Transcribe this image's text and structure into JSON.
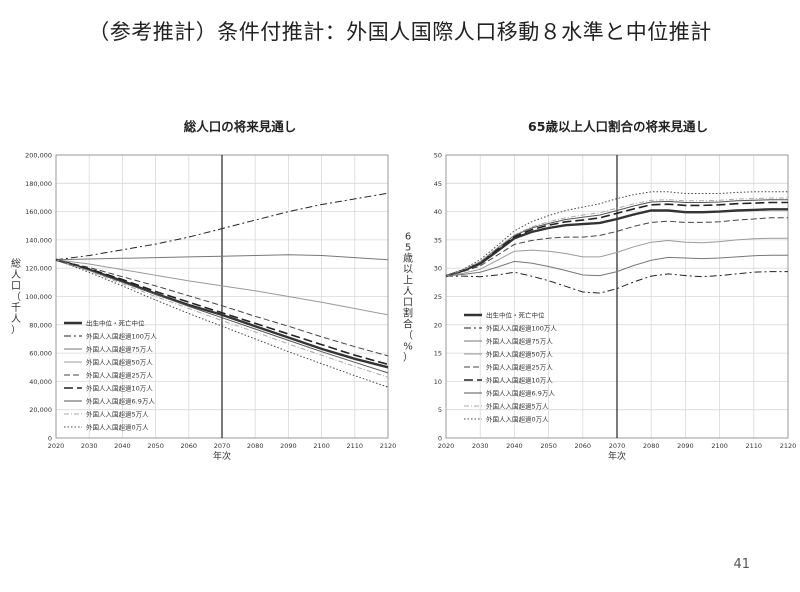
{
  "slide": {
    "title": "（参考推計）条件付推計：外国人国際人口移動８水準と中位推計",
    "page_number": "41"
  },
  "chart_data": [
    {
      "type": "line",
      "title": "総人口の将来見通し",
      "xlabel": "年次",
      "ylabel": "総人口（千人）",
      "xlim": [
        2020,
        2120
      ],
      "ylim": [
        0,
        200000
      ],
      "xticks": [
        2020,
        2030,
        2040,
        2050,
        2060,
        2070,
        2080,
        2090,
        2100,
        2110,
        2120
      ],
      "yticks": [
        0,
        20000,
        40000,
        60000,
        80000,
        100000,
        120000,
        140000,
        160000,
        180000,
        200000
      ],
      "ytick_labels": [
        "0",
        "20,000",
        "40,000",
        "60,000",
        "80,000",
        "100,000",
        "120,000",
        "140,000",
        "160,000",
        "180,000",
        "200,000"
      ],
      "reference_line_x": 2070,
      "grid": true,
      "legend_position": "lower-left",
      "x": [
        2020,
        2030,
        2040,
        2050,
        2060,
        2070,
        2080,
        2090,
        2100,
        2110,
        2120
      ],
      "series": [
        {
          "name": "出生中位・死亡中位",
          "style": "bold",
          "values": [
            126000,
            119000,
            111000,
            102000,
            94000,
            87000,
            79000,
            71000,
            63000,
            56000,
            50000
          ]
        },
        {
          "name": "外国人入国超過100万人",
          "style": "dashdot",
          "values": [
            126000,
            129000,
            133000,
            137000,
            142000,
            148000,
            154000,
            160000,
            165000,
            169000,
            173000
          ]
        },
        {
          "name": "外国人入国超過75万人",
          "style": "thin",
          "values": [
            126000,
            126500,
            127000,
            127500,
            128000,
            128500,
            129000,
            129500,
            129000,
            127500,
            126000
          ]
        },
        {
          "name": "外国人入国超過50万人",
          "style": "thin-light",
          "values": [
            126000,
            123000,
            119000,
            115000,
            111000,
            107500,
            104000,
            100000,
            96000,
            91500,
            87000
          ]
        },
        {
          "name": "外国人入国超過25万人",
          "style": "dashed",
          "values": [
            126000,
            120500,
            114000,
            107500,
            100500,
            93500,
            86000,
            79000,
            71500,
            64500,
            58000
          ]
        },
        {
          "name": "外国人入国超過10万人",
          "style": "long-dash",
          "values": [
            126000,
            119500,
            112000,
            103500,
            96000,
            88500,
            81000,
            73500,
            66000,
            58500,
            52000
          ]
        },
        {
          "name": "外国人入国超過6.9万人",
          "style": "thin-dark",
          "values": [
            126000,
            118500,
            110000,
            101500,
            93000,
            85000,
            77000,
            69000,
            61000,
            53500,
            46000
          ]
        },
        {
          "name": "外国人入国超過5万人",
          "style": "dash-dot-light",
          "values": [
            126000,
            118000,
            109000,
            100000,
            91500,
            83000,
            75000,
            66500,
            58500,
            50500,
            43000
          ]
        },
        {
          "name": "外国人入国超過0万人",
          "style": "dotted",
          "values": [
            126000,
            117000,
            107500,
            97500,
            88000,
            79000,
            70000,
            61000,
            52500,
            44000,
            36000
          ]
        }
      ]
    },
    {
      "type": "line",
      "title": "65歳以上人口割合の将来見通し",
      "xlabel": "年次",
      "ylabel": "65歳以上人口割合（%）",
      "xlim": [
        2020,
        2120
      ],
      "ylim": [
        0,
        50
      ],
      "xticks": [
        2020,
        2030,
        2040,
        2050,
        2060,
        2070,
        2080,
        2090,
        2100,
        2110,
        2120
      ],
      "yticks": [
        0,
        5,
        10,
        15,
        20,
        25,
        30,
        35,
        40,
        45,
        50
      ],
      "ytick_labels": [
        "0",
        "5",
        "10",
        "15",
        "20",
        "25",
        "30",
        "35",
        "40",
        "45",
        "50"
      ],
      "reference_line_x": 2070,
      "grid": true,
      "legend_position": "lower-left",
      "x": [
        2020,
        2025,
        2030,
        2035,
        2040,
        2045,
        2050,
        2055,
        2060,
        2065,
        2070,
        2075,
        2080,
        2085,
        2090,
        2095,
        2100,
        2105,
        2110,
        2115,
        2120
      ],
      "series": [
        {
          "name": "出生中位・死亡中位",
          "style": "bold",
          "values": [
            28.6,
            29.6,
            30.8,
            33.0,
            35.3,
            36.4,
            37.1,
            37.6,
            37.8,
            38.0,
            38.7,
            39.5,
            40.2,
            40.2,
            39.9,
            39.9,
            40.0,
            40.2,
            40.3,
            40.4,
            40.4
          ]
        },
        {
          "name": "外国人入国超過100万人",
          "style": "dashdot",
          "values": [
            28.6,
            28.6,
            28.5,
            28.8,
            29.3,
            28.6,
            27.8,
            26.8,
            25.8,
            25.6,
            26.4,
            27.6,
            28.6,
            29.0,
            28.7,
            28.5,
            28.7,
            29.0,
            29.3,
            29.4,
            29.4
          ]
        },
        {
          "name": "外国人入国超過75万人",
          "style": "thin",
          "values": [
            28.6,
            28.9,
            29.3,
            30.2,
            31.2,
            30.9,
            30.3,
            29.6,
            28.8,
            28.7,
            29.4,
            30.5,
            31.4,
            31.9,
            31.8,
            31.7,
            31.8,
            32.0,
            32.2,
            32.3,
            32.3
          ]
        },
        {
          "name": "外国人入国超過50万人",
          "style": "thin-light",
          "values": [
            28.6,
            29.1,
            29.8,
            31.4,
            33.0,
            33.2,
            33.0,
            32.6,
            32.0,
            32.0,
            32.8,
            33.8,
            34.6,
            34.9,
            34.6,
            34.5,
            34.7,
            35.0,
            35.2,
            35.3,
            35.3
          ]
        },
        {
          "name": "外国人入国超過25万人",
          "style": "dashed",
          "values": [
            28.6,
            29.4,
            30.4,
            32.3,
            34.2,
            34.9,
            35.3,
            35.5,
            35.5,
            35.8,
            36.5,
            37.4,
            38.1,
            38.3,
            38.1,
            38.1,
            38.2,
            38.5,
            38.7,
            38.9,
            38.9
          ]
        },
        {
          "name": "外国人入国超過10万人",
          "style": "long-dash",
          "values": [
            28.6,
            29.6,
            31.0,
            33.3,
            35.6,
            36.8,
            37.6,
            38.2,
            38.5,
            38.9,
            39.7,
            40.5,
            41.2,
            41.3,
            41.1,
            41.1,
            41.2,
            41.4,
            41.5,
            41.6,
            41.6
          ]
        },
        {
          "name": "外国人入国超過6.9万人",
          "style": "thin-dark",
          "values": [
            28.6,
            29.7,
            31.1,
            33.5,
            35.8,
            37.1,
            37.9,
            38.6,
            39.0,
            39.4,
            40.2,
            41.0,
            41.7,
            41.8,
            41.6,
            41.6,
            41.7,
            41.9,
            42.0,
            42.1,
            42.1
          ]
        },
        {
          "name": "外国人入国超過5万人",
          "style": "dash-dot-light",
          "values": [
            28.6,
            29.7,
            31.2,
            33.6,
            35.9,
            37.3,
            38.2,
            38.9,
            39.4,
            39.8,
            40.6,
            41.4,
            42.0,
            42.1,
            41.9,
            41.9,
            42.0,
            42.2,
            42.3,
            42.4,
            42.4
          ]
        },
        {
          "name": "外国人入国超過0万人",
          "style": "dotted",
          "values": [
            28.6,
            29.8,
            31.5,
            34.0,
            36.6,
            38.2,
            39.3,
            40.2,
            40.8,
            41.4,
            42.3,
            43.0,
            43.5,
            43.5,
            43.2,
            43.2,
            43.2,
            43.4,
            43.5,
            43.5,
            43.5
          ]
        }
      ]
    }
  ],
  "line_styles": {
    "bold": {
      "color": "#333333",
      "dash": ""
    },
    "dashdot": {
      "color": "#222222",
      "dash": "7,3,2,3"
    },
    "thin": {
      "color": "#777777",
      "dash": ""
    },
    "thin-light": {
      "color": "#9a9a9a",
      "dash": ""
    },
    "dashed": {
      "color": "#444444",
      "dash": "6,3"
    },
    "long-dash": {
      "color": "#222222",
      "dash": "9,4"
    },
    "thin-dark": {
      "color": "#555555",
      "dash": ""
    },
    "dash-dot-light": {
      "color": "#aaaaaa",
      "dash": "5,2,1,2"
    },
    "dotted": {
      "color": "#444444",
      "dash": "1.5,2"
    }
  },
  "colors": {
    "grid": "#d9d9d9",
    "axis": "#888888",
    "reference_line": "#222222"
  }
}
